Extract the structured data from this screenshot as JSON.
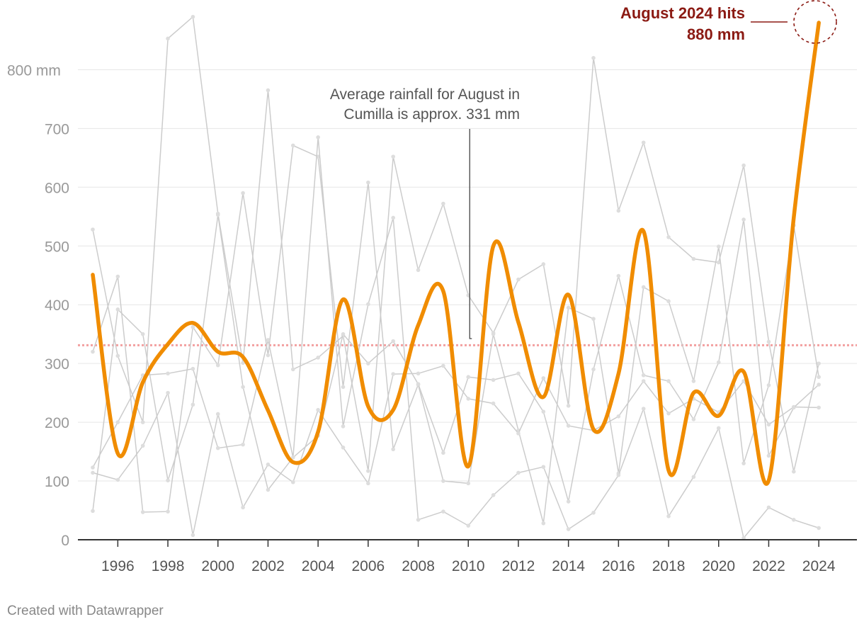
{
  "chart_data": {
    "type": "line",
    "title": "",
    "xlabel": "",
    "ylabel": "",
    "ylim": [
      0,
      880
    ],
    "xlim": [
      1995,
      2024
    ],
    "y_ticks": [
      {
        "value": 0,
        "label": "0"
      },
      {
        "value": 100,
        "label": "100"
      },
      {
        "value": 200,
        "label": "200"
      },
      {
        "value": 300,
        "label": "300"
      },
      {
        "value": 400,
        "label": "400"
      },
      {
        "value": 500,
        "label": "500"
      },
      {
        "value": 600,
        "label": "600"
      },
      {
        "value": 700,
        "label": "700"
      },
      {
        "value": 800,
        "label": "800 mm"
      }
    ],
    "x_ticks": [
      {
        "value": 1996,
        "label": "1996"
      },
      {
        "value": 1998,
        "label": "1998"
      },
      {
        "value": 2000,
        "label": "2000"
      },
      {
        "value": 2002,
        "label": "2002"
      },
      {
        "value": 2004,
        "label": "2004"
      },
      {
        "value": 2006,
        "label": "2006"
      },
      {
        "value": 2008,
        "label": "2008"
      },
      {
        "value": 2010,
        "label": "2010"
      },
      {
        "value": 2012,
        "label": "2012"
      },
      {
        "value": 2014,
        "label": "2014"
      },
      {
        "value": 2016,
        "label": "2016"
      },
      {
        "value": 2018,
        "label": "2018"
      },
      {
        "value": 2020,
        "label": "2020"
      },
      {
        "value": 2022,
        "label": "2022"
      },
      {
        "value": 2024,
        "label": "2024"
      }
    ],
    "x": [
      1995,
      1996,
      1997,
      1998,
      1999,
      2000,
      2001,
      2002,
      2003,
      2004,
      2005,
      2006,
      2007,
      2008,
      2009,
      2010,
      2011,
      2012,
      2013,
      2014,
      2015,
      2016,
      2017,
      2018,
      2019,
      2020,
      2021,
      2022,
      2023,
      2024
    ],
    "highlight_series": {
      "name": "August",
      "color": "#f08c00",
      "values": [
        451,
        147,
        268,
        333,
        369,
        320,
        311,
        220,
        132,
        184,
        409,
        227,
        221,
        365,
        423,
        125,
        500,
        370,
        243,
        417,
        188,
        283,
        525,
        118,
        250,
        211,
        286,
        101,
        548,
        880
      ]
    },
    "background_series": [
      {
        "name": "other-month-1",
        "values": [
          528,
          313,
          200,
          853,
          890,
          555,
          301,
          765,
          290,
          310,
          347,
          117,
          652,
          459,
          572,
          416,
          352,
          443,
          469,
          228,
          820,
          560,
          676,
          515,
          478,
          472,
          637,
          337,
          116,
          300
        ]
      },
      {
        "name": "other-month-2",
        "values": [
          320,
          448,
          47,
          48,
          362,
          297,
          590,
          314,
          671,
          652,
          260,
          608,
          154,
          264,
          100,
          96,
          350,
          186,
          28,
          395,
          376,
          113,
          430,
          406,
          270,
          499,
          130,
          263,
          535,
          277
        ]
      },
      {
        "name": "other-month-3",
        "values": [
          49,
          392,
          350,
          101,
          230,
          553,
          260,
          85,
          140,
          685,
          193,
          401,
          548,
          34,
          48,
          24,
          76,
          114,
          124,
          18,
          46,
          110,
          223,
          40,
          107,
          190,
          3,
          55,
          34,
          20
        ]
      },
      {
        "name": "other-month-4",
        "values": [
          114,
          102,
          160,
          250,
          8,
          214,
          55,
          128,
          98,
          221,
          157,
          96,
          282,
          283,
          296,
          240,
          232,
          181,
          275,
          194,
          186,
          210,
          270,
          215,
          240,
          217,
          270,
          196,
          226,
          225
        ]
      },
      {
        "name": "other-month-5",
        "values": [
          123,
          200,
          280,
          283,
          291,
          156,
          162,
          340,
          140,
          177,
          350,
          300,
          338,
          265,
          148,
          277,
          272,
          283,
          218,
          65,
          290,
          449,
          280,
          270,
          205,
          302,
          545,
          143,
          225,
          264
        ]
      }
    ],
    "reference_line": {
      "value": 331,
      "color": "#f2a0a0"
    },
    "annotations": [
      {
        "lines": [
          "Average rainfall for August in",
          "Cumilla is approx. 331 mm"
        ],
        "x": 2010,
        "y": 331
      },
      {
        "lines": [
          "August 2024 hits",
          "880 mm"
        ],
        "x": 2024,
        "y": 880,
        "color": "#8b1a13"
      }
    ]
  },
  "footer": {
    "credit": "Created with Datawrapper"
  }
}
